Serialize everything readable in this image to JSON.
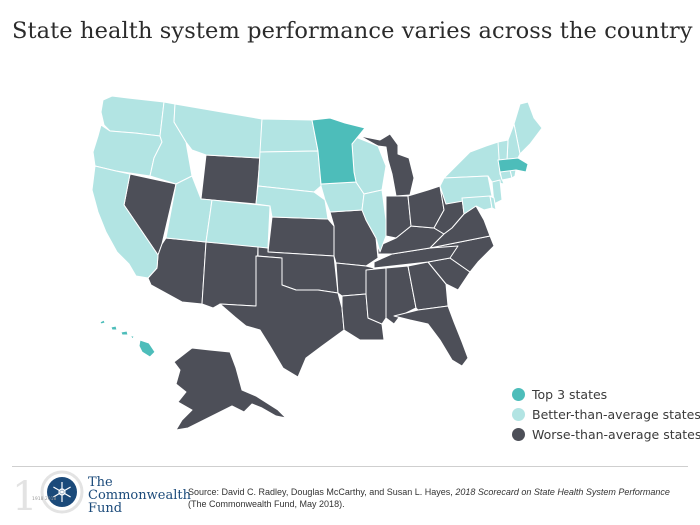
{
  "title": "State health system performance varies across the country",
  "colors": {
    "top": "#4dbdba",
    "better": "#b2e4e3",
    "worse": "#4d4f58",
    "border": "#ffffff",
    "logo_blue": "#1b4a7a"
  },
  "legend": [
    {
      "key": "top",
      "label": "Top 3 states"
    },
    {
      "key": "better",
      "label": "Better-than-average states"
    },
    {
      "key": "worse",
      "label": "Worse-than-average states"
    }
  ],
  "states": {
    "top": [
      "Minnesota",
      "Massachusetts",
      "Hawaii"
    ],
    "better": [
      "Washington",
      "Oregon",
      "California",
      "Idaho",
      "Montana",
      "North Dakota",
      "South Dakota",
      "Nebraska",
      "Utah",
      "Colorado",
      "Iowa",
      "Wisconsin",
      "Illinois",
      "Maine",
      "New Hampshire",
      "Vermont",
      "New York",
      "Pennsylvania",
      "New Jersey",
      "Connecticut",
      "Rhode Island",
      "Maryland",
      "Delaware"
    ],
    "worse": [
      "Nevada",
      "Wyoming",
      "Arizona",
      "New Mexico",
      "Kansas",
      "Oklahoma",
      "Texas",
      "Missouri",
      "Arkansas",
      "Louisiana",
      "Mississippi",
      "Alabama",
      "Georgia",
      "Florida",
      "South Carolina",
      "North Carolina",
      "Tennessee",
      "Kentucky",
      "Indiana",
      "Michigan",
      "Ohio",
      "West Virginia",
      "Virginia",
      "Alaska"
    ]
  },
  "footer": {
    "logo_line1": "The",
    "logo_line2": "Commonwealth",
    "logo_line3": "Fund",
    "logo_years": "1918 2018",
    "logo_anniversary": "100",
    "source_prefix": "Source: David C. Radley, Douglas McCarthy, and Susan L. Hayes,",
    "source_title": "2018 Scorecard on State Health System Performance",
    "source_suffix": "(The Commonwealth Fund, May 2018)."
  }
}
